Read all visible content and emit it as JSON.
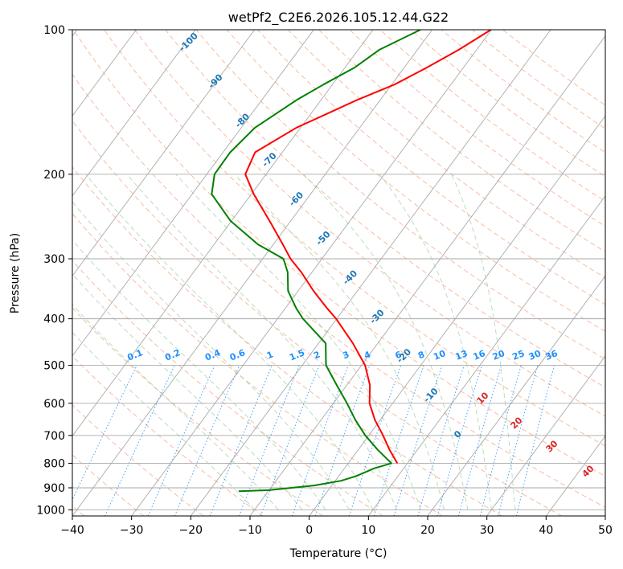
{
  "chart_data": {
    "type": "line",
    "title": "wetPf2_C2E6.2026.105.12.44.G22",
    "xlabel": "Temperature (°C)",
    "ylabel": "Pressure (hPa)",
    "xlim": [
      -40,
      50
    ],
    "ylim": [
      1030,
      100
    ],
    "y_scale": "log",
    "x_ticks": [
      -40,
      -30,
      -20,
      -10,
      0,
      10,
      20,
      30,
      40,
      50
    ],
    "y_ticks": [
      100,
      200,
      300,
      400,
      500,
      600,
      700,
      800,
      900,
      1000
    ],
    "grid": true,
    "series": [
      {
        "color": "#ff0000",
        "points": [
          [
            100,
            -30.1
          ],
          [
            110,
            -33.0
          ],
          [
            120,
            -36.2
          ],
          [
            130,
            -39.5
          ],
          [
            140,
            -43.9
          ],
          [
            150,
            -47.4
          ],
          [
            160,
            -50.7
          ],
          [
            180,
            -54.6
          ],
          [
            200,
            -53.5
          ],
          [
            220,
            -49.6
          ],
          [
            250,
            -43.6
          ],
          [
            280,
            -38.4
          ],
          [
            300,
            -35.3
          ],
          [
            320,
            -31.8
          ],
          [
            350,
            -27.4
          ],
          [
            380,
            -23.0
          ],
          [
            400,
            -20.1
          ],
          [
            450,
            -14.2
          ],
          [
            500,
            -9.4
          ],
          [
            550,
            -6.1
          ],
          [
            600,
            -3.9
          ],
          [
            650,
            -0.9
          ],
          [
            700,
            2.4
          ],
          [
            750,
            5.3
          ],
          [
            800,
            8.3
          ]
        ]
      },
      {
        "color": "#008000",
        "points": [
          [
            100,
            -42.0
          ],
          [
            110,
            -46.4
          ],
          [
            120,
            -48.4
          ],
          [
            130,
            -51.5
          ],
          [
            140,
            -54.1
          ],
          [
            160,
            -57.7
          ],
          [
            180,
            -58.8
          ],
          [
            200,
            -58.7
          ],
          [
            220,
            -56.7
          ],
          [
            250,
            -50.2
          ],
          [
            280,
            -42.6
          ],
          [
            300,
            -36.5
          ],
          [
            320,
            -34.1
          ],
          [
            350,
            -31.7
          ],
          [
            380,
            -28.2
          ],
          [
            400,
            -25.7
          ],
          [
            450,
            -18.8
          ],
          [
            500,
            -16.0
          ],
          [
            550,
            -11.7
          ],
          [
            600,
            -7.7
          ],
          [
            650,
            -4.2
          ],
          [
            700,
            -0.6
          ],
          [
            750,
            3.3
          ],
          [
            800,
            7.3
          ],
          [
            820,
            5.0
          ],
          [
            850,
            3.0
          ],
          [
            870,
            1.0
          ],
          [
            890,
            -3.0
          ],
          [
            910,
            -10.0
          ],
          [
            915,
            -15.0
          ]
        ]
      }
    ],
    "mixing_ratio_labels": [
      "0.1",
      "0.2",
      "0.4",
      "0.6",
      "1",
      "1.5",
      "2",
      "3",
      "4",
      "6",
      "8",
      "10",
      "13",
      "16",
      "20",
      "25",
      "30",
      "36"
    ],
    "mixing_ratio_label_color": "#1e90ff",
    "dry_adiabat_labels": [
      "-100",
      "-90",
      "-80",
      "-70",
      "-60",
      "-50",
      "-40",
      "-30",
      "-20",
      "-10",
      "0"
    ],
    "dry_adiabat_label_color": "#1f77b4",
    "moist_adiabat_labels": [
      "10",
      "20",
      "30",
      "40"
    ],
    "moist_adiabat_label_color": "#d62728",
    "background_line_colors": {
      "isotherm": "#aaaaaa",
      "dry_adiabat": "#f4a582",
      "moist_adiabat": "#9ecf9e",
      "mixing_ratio": "#1e90ff",
      "lcl_curve": "#d9c3a0"
    }
  }
}
